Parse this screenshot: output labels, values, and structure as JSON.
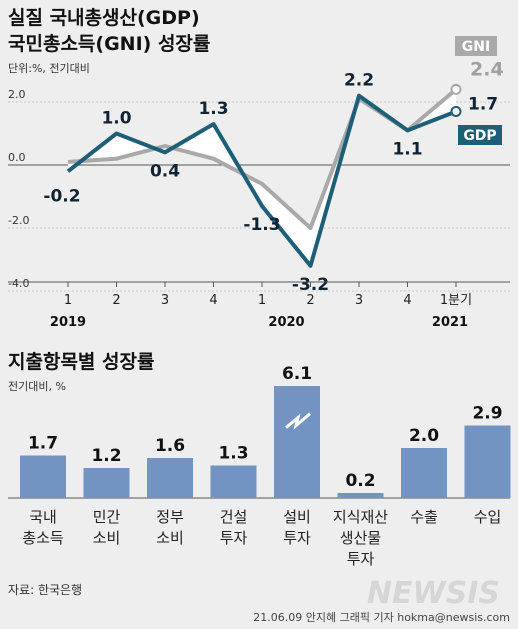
{
  "header": {
    "title_line1": "실질 국내총생산(GDP)",
    "title_line2": "국민총소득(GNI) 성장률",
    "unit": "단위:%, 전기대비"
  },
  "chart_data": [
    {
      "type": "line",
      "x": [
        "1",
        "2",
        "3",
        "4",
        "1",
        "2",
        "3",
        "4",
        "1분기"
      ],
      "year_labels": [
        {
          "label": "2019",
          "index": 0
        },
        {
          "label": "2020",
          "index": 4
        },
        {
          "label": "2021",
          "index": 8
        }
      ],
      "yticks": [
        2.0,
        0.0,
        -2.0,
        -4.0
      ],
      "ytick_labels": [
        "2.0",
        "0.0",
        "-2.0",
        "-4.0"
      ],
      "ylim": [
        -4.0,
        2.6
      ],
      "series": [
        {
          "name": "GDP",
          "values": [
            -0.2,
            1.0,
            0.4,
            1.3,
            -1.3,
            -3.2,
            2.2,
            1.1,
            1.7
          ],
          "labels": [
            "-0.2",
            "1.0",
            "0.4",
            "1.3",
            "-1.3",
            "-3.2",
            "2.2",
            "1.1",
            "1.7"
          ],
          "color": "#1e5f78"
        },
        {
          "name": "GNI",
          "values": [
            0.1,
            0.2,
            0.6,
            0.2,
            -0.6,
            -2.0,
            2.1,
            1.1,
            2.4
          ],
          "last_label": "2.4",
          "color": "#a9a9a9"
        }
      ]
    },
    {
      "type": "bar",
      "title": "지출항목별 성장률",
      "unit": "전기대비, %",
      "categories": [
        [
          "국내",
          "총소득"
        ],
        [
          "민간",
          "소비"
        ],
        [
          "정부",
          "소비"
        ],
        [
          "건설",
          "투자"
        ],
        [
          "설비",
          "투자"
        ],
        [
          "지식재산",
          "생산물",
          "투자"
        ],
        [
          "수출"
        ],
        [
          "수입"
        ]
      ],
      "values": [
        1.7,
        1.2,
        1.6,
        1.3,
        6.1,
        0.2,
        2.0,
        2.9
      ],
      "value_labels": [
        "1.7",
        "1.2",
        "1.6",
        "1.3",
        "6.1",
        "0.2",
        "2.0",
        "2.9"
      ],
      "broken_index": 4,
      "color": "#7393c3"
    }
  ],
  "footer": {
    "source": "자료: 한국은행",
    "credit": "21.06.09 안지혜 그래픽 기자 hokma@newsis.com",
    "watermark": "NEWSIS"
  }
}
